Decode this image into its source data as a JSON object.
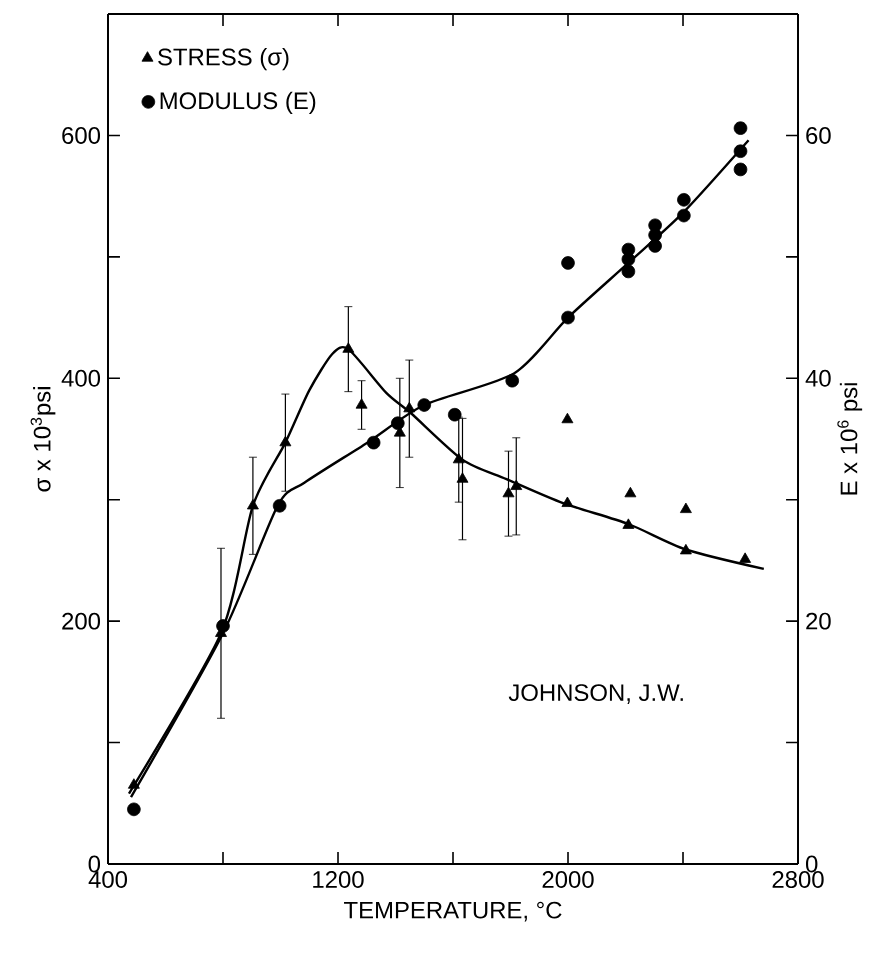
{
  "chart_data": {
    "type": "scatter",
    "xlabel": "TEMPERATURE, °C",
    "ylabel": "σ x 10$^{3}$psi",
    "y2label": "E x 10$^{6}$ psi",
    "annotations": [
      "JOHNSON, J.W."
    ],
    "xlim": [
      400,
      2800
    ],
    "xticks": [
      400,
      {
        "value": 800,
        "label": null
      },
      1200,
      {
        "value": 1600,
        "label": null
      },
      2000,
      {
        "value": 2400,
        "label": null
      },
      2800
    ],
    "ylim": [
      0,
      700
    ],
    "yticks": [
      0,
      {
        "value": 100,
        "label": null
      },
      200,
      {
        "value": 300,
        "label": null
      },
      400,
      {
        "value": 500,
        "label": null
      },
      600
    ],
    "y2lim": [
      0,
      70
    ],
    "y2ticks": [
      0,
      {
        "value": 10,
        "label": null
      },
      20,
      {
        "value": 30,
        "label": null
      },
      40,
      {
        "value": 50,
        "label": null
      },
      60
    ],
    "legend": "top left",
    "line_style": "solid",
    "series": [
      {
        "name": "STRESS (σ)",
        "type": "scatter",
        "marker": "triangle",
        "color": "#000000",
        "x": [
          490,
          793,
          904,
          1017,
          1236,
          1282,
          1415,
          1448,
          1620,
          1633,
          1793,
          1820,
          1998,
          1998,
          2210,
          2217,
          2410,
          2410,
          2616
        ],
        "values": [
          65,
          190,
          295,
          347,
          424,
          378,
          355,
          375,
          333,
          317,
          305,
          311,
          297,
          366,
          279,
          305,
          258,
          292,
          251
        ],
        "errors": [
          null,
          70,
          40,
          40,
          35,
          20,
          45,
          40,
          35,
          50,
          35,
          40,
          null,
          null,
          null,
          null,
          null,
          null,
          null
        ]
      },
      {
        "name": "MODULUS (E)",
        "type": "scatter",
        "marker": "circle",
        "axis": "y2",
        "color": "#000000",
        "x": [
          490,
          800,
          997,
          1324,
          1408,
          1500,
          1606,
          1806,
          2000,
          2000,
          2210,
          2210,
          2210,
          2303,
          2303,
          2303,
          2403,
          2403,
          2600,
          2600,
          2600
        ],
        "values": [
          4.5,
          19.6,
          29.5,
          34.7,
          36.3,
          37.8,
          37.0,
          39.8,
          45.0,
          49.5,
          48.8,
          49.8,
          50.6,
          50.9,
          51.8,
          52.6,
          53.4,
          54.7,
          57.2,
          58.7,
          60.6
        ]
      },
      {
        "type": "line",
        "marker": "none",
        "color": "#000000",
        "x": [
          473,
          793,
          904,
          1017,
          1100,
          1180,
          1236,
          1368,
          1455,
          1633,
          1786,
          1985,
          2210,
          2410,
          2681
        ],
        "values": [
          58,
          190,
          295,
          347,
          390,
          420,
          424,
          388,
          371,
          333,
          317,
          297,
          280,
          259,
          243
        ]
      },
      {
        "type": "line",
        "marker": "none",
        "axis": "y2",
        "color": "#000000",
        "x": [
          480,
          800,
          990,
          1083,
          1302,
          1500,
          1812,
          2000,
          2210,
          2403,
          2628
        ],
        "values": [
          5.5,
          19.0,
          29.5,
          31.4,
          34.7,
          37.8,
          40.4,
          45.0,
          49.5,
          53.7,
          59.6
        ]
      }
    ]
  }
}
